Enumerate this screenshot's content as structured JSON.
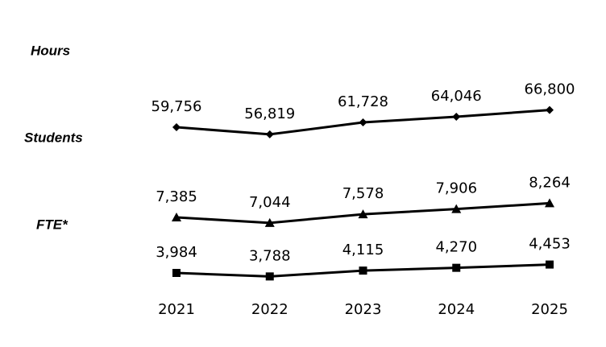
{
  "chart_data": {
    "type": "line",
    "categories": [
      "2021",
      "2022",
      "2023",
      "2024",
      "2025"
    ],
    "series": [
      {
        "name": "Hours",
        "color": "#000000",
        "marker": "diamond",
        "values": [
          59756,
          56819,
          61728,
          64046,
          66800
        ],
        "value_labels": [
          "59,756",
          "56,819",
          "61,728",
          "64,046",
          "66,800"
        ]
      },
      {
        "name": "Students",
        "color": "#000000",
        "marker": "triangle",
        "values": [
          7385,
          7044,
          7578,
          7906,
          8264
        ],
        "value_labels": [
          "7,385",
          "7,044",
          "7,578",
          "7,906",
          "8,264"
        ]
      },
      {
        "name": "FTE*",
        "color": "#000000",
        "marker": "square",
        "values": [
          3984,
          3788,
          4115,
          4270,
          4453
        ],
        "value_labels": [
          "3,984",
          "3,788",
          "4,115",
          "4,270",
          "4,453"
        ]
      }
    ]
  }
}
